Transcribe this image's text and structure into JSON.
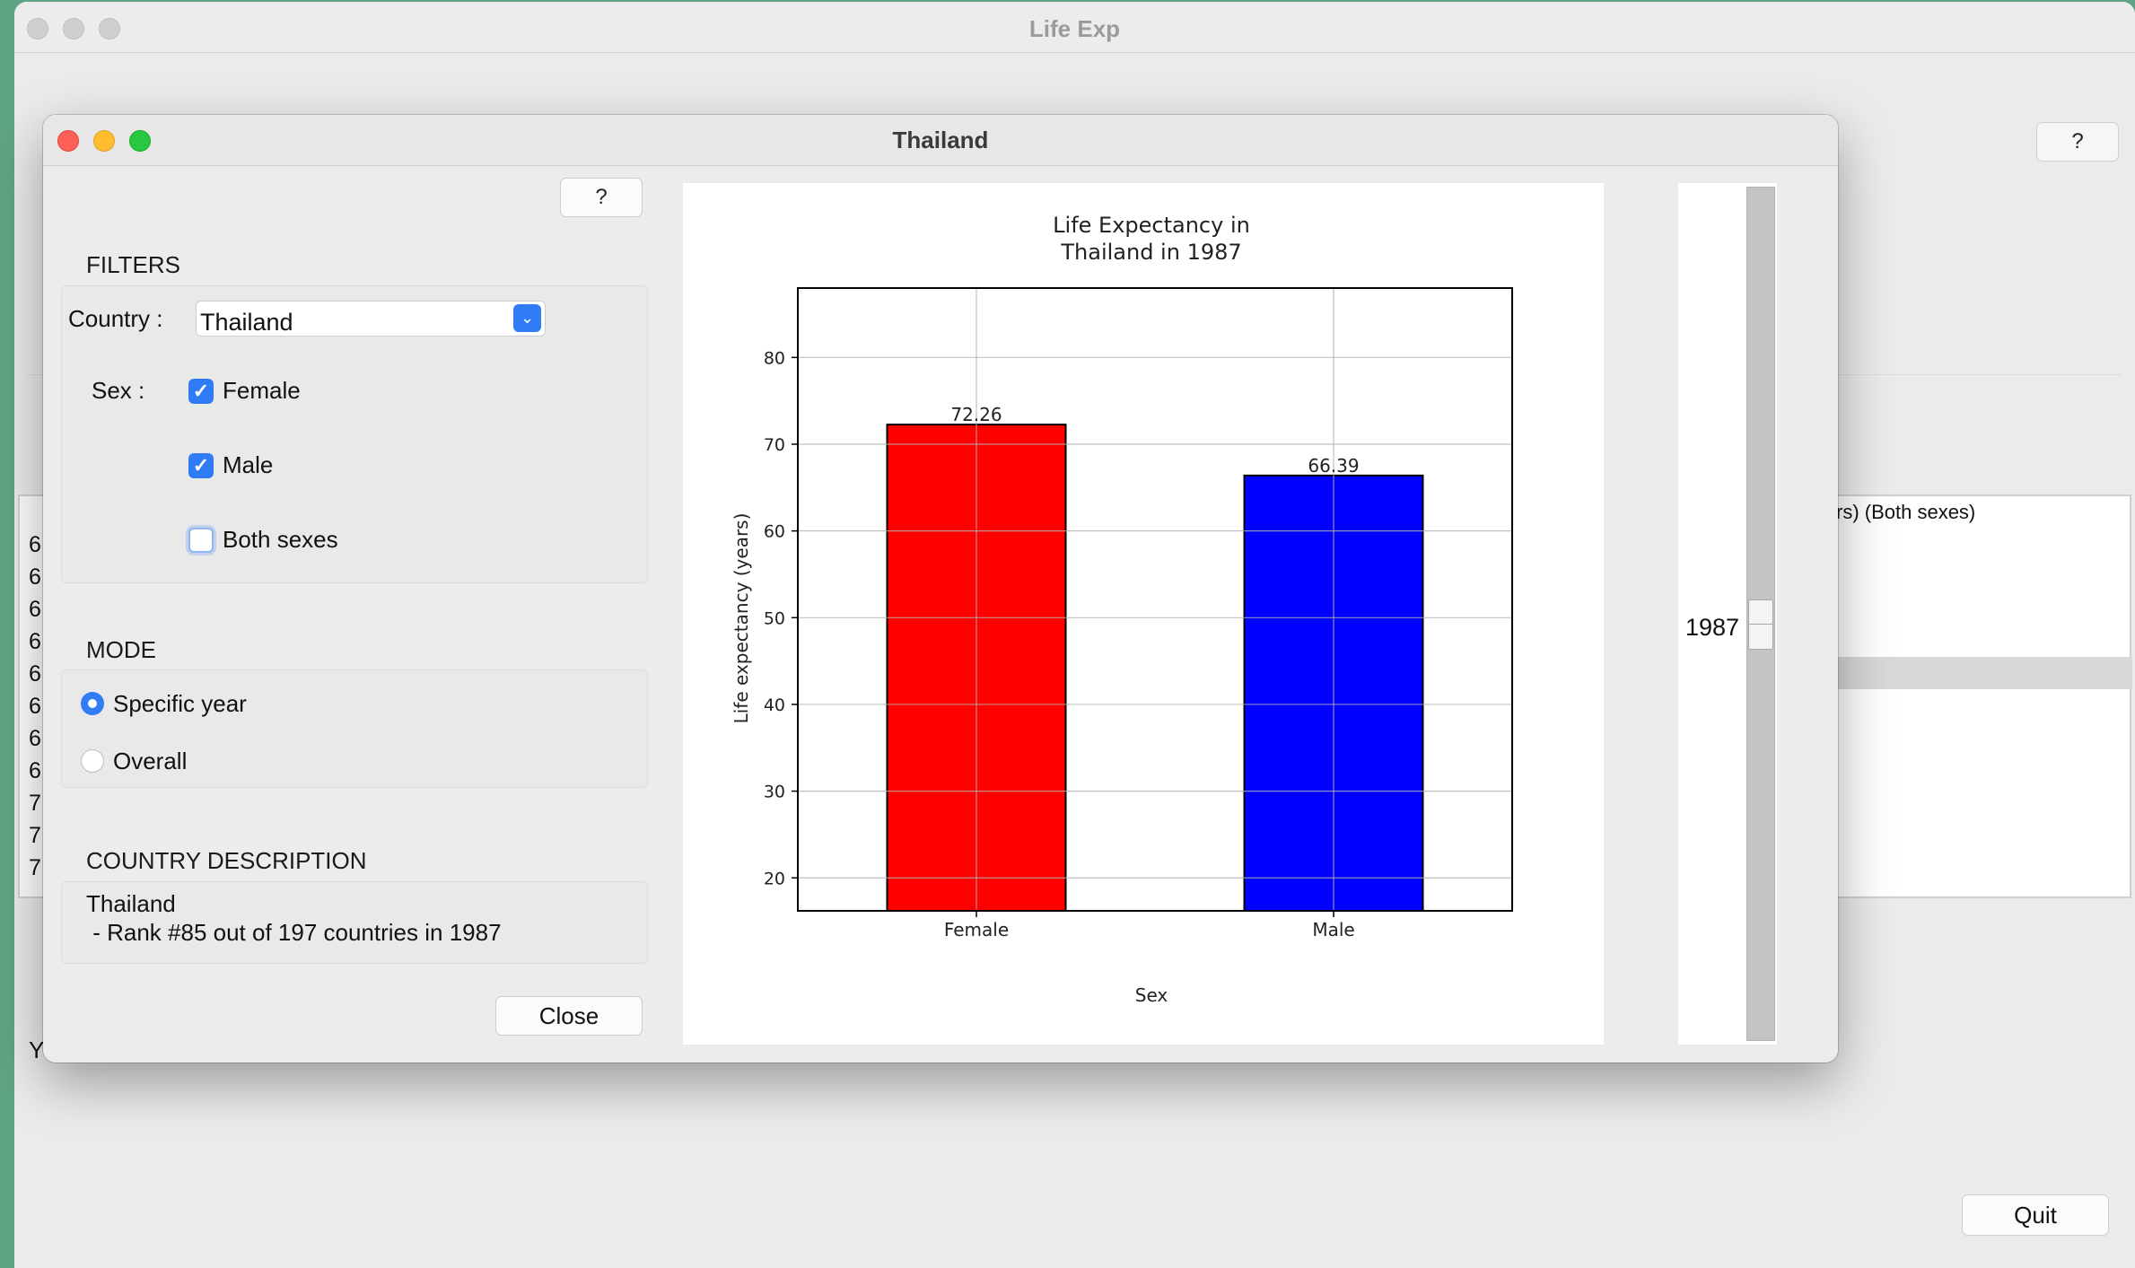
{
  "main_window": {
    "title": "Life Exp",
    "help_label": "?",
    "table_header_fragment": "rs) (Both sexes)",
    "row_digits": [
      "6",
      "6",
      "6",
      "6",
      "6",
      "6",
      "6",
      "6",
      "7",
      "7",
      "7"
    ],
    "bottom_text_fragment": "Y",
    "quit_label": "Quit"
  },
  "dialog": {
    "title": "Thailand",
    "help_label": "?",
    "filters": {
      "heading": "FILTERS",
      "country_label": "Country :",
      "country_value": "Thailand",
      "sex_label": "Sex :",
      "options": [
        {
          "label": "Female",
          "checked": true
        },
        {
          "label": "Male",
          "checked": true
        },
        {
          "label": "Both sexes",
          "checked": false
        }
      ]
    },
    "mode": {
      "heading": "MODE",
      "options": [
        {
          "label": "Specific year",
          "selected": true
        },
        {
          "label": "Overall",
          "selected": false
        }
      ]
    },
    "description": {
      "heading": "COUNTRY DESCRIPTION",
      "line1": "Thailand",
      "line2": " - Rank #85 out of 197 countries in 1987"
    },
    "close_label": "Close",
    "year_slider": {
      "value": "1987"
    }
  },
  "chart_data": {
    "type": "bar",
    "title_line1": "Life Expectancy in",
    "title_line2": "Thailand in 1987",
    "categories": [
      "Female",
      "Male"
    ],
    "values": [
      72.26,
      66.39
    ],
    "value_labels": [
      "72.26",
      "66.39"
    ],
    "colors": [
      "#ff0000",
      "#0000ff"
    ],
    "xlabel": "Sex",
    "ylabel": "Life expectancy (years)",
    "ylim": [
      16.2,
      88
    ],
    "yticks": [
      20,
      30,
      40,
      50,
      60,
      70,
      80
    ],
    "grid": true
  }
}
